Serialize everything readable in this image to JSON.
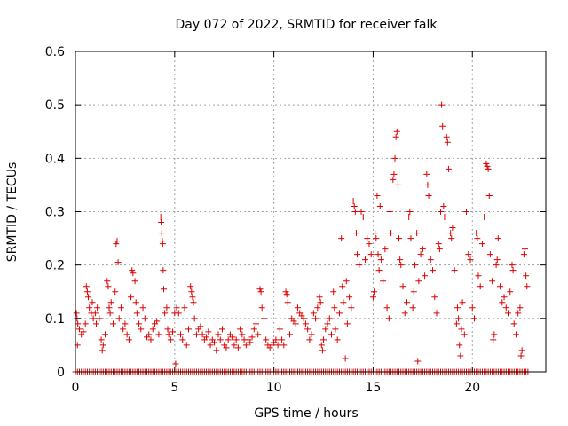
{
  "chart_data": {
    "type": "scatter",
    "title": "Day 072 of 2022, SRMTID for receiver falk",
    "xlabel": "GPS time / hours",
    "ylabel": "SRMTID / TECUs",
    "xlim": [
      0,
      23.7
    ],
    "ylim": [
      0,
      0.6
    ],
    "xticks": [
      0,
      5,
      10,
      15,
      20
    ],
    "yticks": [
      0,
      0.1,
      0.2,
      0.3,
      0.4,
      0.5,
      0.6
    ],
    "grid": true,
    "marker": "plus",
    "color": "#dd0000",
    "series": [
      {
        "name": "SRMTID",
        "points": [
          [
            0.05,
            0.11
          ],
          [
            0.08,
            0.1
          ],
          [
            0.1,
            0.05
          ],
          [
            0.12,
            0.09
          ],
          [
            0.2,
            0.08
          ],
          [
            0.3,
            0.07
          ],
          [
            0.4,
            0.075
          ],
          [
            0.5,
            0.09
          ],
          [
            0.55,
            0.16
          ],
          [
            0.6,
            0.15
          ],
          [
            0.65,
            0.14
          ],
          [
            0.7,
            0.12
          ],
          [
            0.8,
            0.11
          ],
          [
            0.85,
            0.13
          ],
          [
            0.9,
            0.1
          ],
          [
            1.0,
            0.11
          ],
          [
            1.05,
            0.09
          ],
          [
            1.1,
            0.12
          ],
          [
            1.2,
            0.1
          ],
          [
            1.3,
            0.06
          ],
          [
            1.35,
            0.04
          ],
          [
            1.4,
            0.05
          ],
          [
            1.5,
            0.07
          ],
          [
            1.6,
            0.17
          ],
          [
            1.65,
            0.16
          ],
          [
            1.7,
            0.12
          ],
          [
            1.75,
            0.11
          ],
          [
            1.8,
            0.13
          ],
          [
            1.9,
            0.09
          ],
          [
            2.0,
            0.15
          ],
          [
            2.05,
            0.24
          ],
          [
            2.1,
            0.245
          ],
          [
            2.15,
            0.205
          ],
          [
            2.2,
            0.1
          ],
          [
            2.3,
            0.12
          ],
          [
            2.4,
            0.08
          ],
          [
            2.5,
            0.09
          ],
          [
            2.6,
            0.07
          ],
          [
            2.7,
            0.06
          ],
          [
            2.8,
            0.14
          ],
          [
            2.85,
            0.19
          ],
          [
            2.9,
            0.185
          ],
          [
            3.0,
            0.17
          ],
          [
            3.05,
            0.13
          ],
          [
            3.1,
            0.11
          ],
          [
            3.2,
            0.09
          ],
          [
            3.3,
            0.08
          ],
          [
            3.4,
            0.12
          ],
          [
            3.5,
            0.1
          ],
          [
            3.6,
            0.065
          ],
          [
            3.7,
            0.07
          ],
          [
            3.8,
            0.06
          ],
          [
            3.9,
            0.08
          ],
          [
            4.0,
            0.09
          ],
          [
            4.1,
            0.095
          ],
          [
            4.2,
            0.07
          ],
          [
            4.3,
            0.29
          ],
          [
            4.32,
            0.28
          ],
          [
            4.35,
            0.26
          ],
          [
            4.38,
            0.245
          ],
          [
            4.4,
            0.24
          ],
          [
            4.42,
            0.19
          ],
          [
            4.45,
            0.155
          ],
          [
            4.5,
            0.11
          ],
          [
            4.6,
            0.12
          ],
          [
            4.65,
            0.08
          ],
          [
            4.7,
            0.07
          ],
          [
            4.8,
            0.06
          ],
          [
            4.9,
            0.075
          ],
          [
            5.0,
            0.11
          ],
          [
            5.05,
            0.015
          ],
          [
            5.1,
            0.12
          ],
          [
            5.2,
            0.11
          ],
          [
            5.3,
            0.07
          ],
          [
            5.4,
            0.06
          ],
          [
            5.5,
            0.12
          ],
          [
            5.6,
            0.05
          ],
          [
            5.7,
            0.08
          ],
          [
            5.8,
            0.16
          ],
          [
            5.85,
            0.15
          ],
          [
            5.9,
            0.14
          ],
          [
            5.95,
            0.13
          ],
          [
            6.0,
            0.1
          ],
          [
            6.1,
            0.07
          ],
          [
            6.2,
            0.08
          ],
          [
            6.3,
            0.085
          ],
          [
            6.4,
            0.07
          ],
          [
            6.5,
            0.06
          ],
          [
            6.6,
            0.065
          ],
          [
            6.7,
            0.075
          ],
          [
            6.8,
            0.05
          ],
          [
            6.9,
            0.06
          ],
          [
            7.0,
            0.055
          ],
          [
            7.1,
            0.04
          ],
          [
            7.2,
            0.07
          ],
          [
            7.3,
            0.06
          ],
          [
            7.4,
            0.08
          ],
          [
            7.5,
            0.05
          ],
          [
            7.6,
            0.045
          ],
          [
            7.7,
            0.06
          ],
          [
            7.8,
            0.07
          ],
          [
            7.9,
            0.065
          ],
          [
            8.0,
            0.05
          ],
          [
            8.1,
            0.06
          ],
          [
            8.2,
            0.045
          ],
          [
            8.3,
            0.08
          ],
          [
            8.4,
            0.07
          ],
          [
            8.5,
            0.06
          ],
          [
            8.6,
            0.05
          ],
          [
            8.7,
            0.06
          ],
          [
            8.8,
            0.055
          ],
          [
            8.9,
            0.065
          ],
          [
            9.0,
            0.08
          ],
          [
            9.1,
            0.09
          ],
          [
            9.2,
            0.07
          ],
          [
            9.3,
            0.155
          ],
          [
            9.35,
            0.15
          ],
          [
            9.4,
            0.12
          ],
          [
            9.5,
            0.1
          ],
          [
            9.6,
            0.06
          ],
          [
            9.7,
            0.05
          ],
          [
            9.8,
            0.045
          ],
          [
            9.9,
            0.05
          ],
          [
            10.0,
            0.055
          ],
          [
            10.1,
            0.06
          ],
          [
            10.2,
            0.05
          ],
          [
            10.3,
            0.08
          ],
          [
            10.4,
            0.06
          ],
          [
            10.5,
            0.05
          ],
          [
            10.6,
            0.15
          ],
          [
            10.65,
            0.145
          ],
          [
            10.7,
            0.13
          ],
          [
            10.8,
            0.07
          ],
          [
            10.9,
            0.1
          ],
          [
            11.0,
            0.095
          ],
          [
            11.1,
            0.09
          ],
          [
            11.2,
            0.12
          ],
          [
            11.3,
            0.11
          ],
          [
            11.4,
            0.105
          ],
          [
            11.5,
            0.1
          ],
          [
            11.6,
            0.09
          ],
          [
            11.7,
            0.08
          ],
          [
            11.8,
            0.06
          ],
          [
            11.9,
            0.07
          ],
          [
            12.0,
            0.11
          ],
          [
            12.1,
            0.1
          ],
          [
            12.2,
            0.12
          ],
          [
            12.3,
            0.14
          ],
          [
            12.35,
            0.13
          ],
          [
            12.4,
            0.05
          ],
          [
            12.45,
            0.04
          ],
          [
            12.5,
            0.06
          ],
          [
            12.6,
            0.08
          ],
          [
            12.7,
            0.09
          ],
          [
            12.8,
            0.1
          ],
          [
            12.9,
            0.07
          ],
          [
            13.0,
            0.15
          ],
          [
            13.05,
            0.12
          ],
          [
            13.1,
            0.08
          ],
          [
            13.2,
            0.06
          ],
          [
            13.3,
            0.11
          ],
          [
            13.4,
            0.25
          ],
          [
            13.45,
            0.16
          ],
          [
            13.5,
            0.13
          ],
          [
            13.6,
            0.025
          ],
          [
            13.65,
            0.17
          ],
          [
            13.7,
            0.09
          ],
          [
            13.8,
            0.14
          ],
          [
            13.9,
            0.12
          ],
          [
            14.0,
            0.32
          ],
          [
            14.05,
            0.31
          ],
          [
            14.1,
            0.3
          ],
          [
            14.15,
            0.26
          ],
          [
            14.2,
            0.22
          ],
          [
            14.3,
            0.2
          ],
          [
            14.4,
            0.3
          ],
          [
            14.5,
            0.29
          ],
          [
            14.6,
            0.21
          ],
          [
            14.7,
            0.25
          ],
          [
            14.8,
            0.24
          ],
          [
            14.9,
            0.22
          ],
          [
            15.0,
            0.14
          ],
          [
            15.05,
            0.15
          ],
          [
            15.1,
            0.26
          ],
          [
            15.15,
            0.25
          ],
          [
            15.2,
            0.33
          ],
          [
            15.25,
            0.22
          ],
          [
            15.3,
            0.19
          ],
          [
            15.35,
            0.31
          ],
          [
            15.4,
            0.21
          ],
          [
            15.5,
            0.17
          ],
          [
            15.6,
            0.23
          ],
          [
            15.7,
            0.12
          ],
          [
            15.8,
            0.1
          ],
          [
            15.85,
            0.3
          ],
          [
            15.9,
            0.26
          ],
          [
            16.0,
            0.36
          ],
          [
            16.05,
            0.37
          ],
          [
            16.1,
            0.4
          ],
          [
            16.15,
            0.44
          ],
          [
            16.2,
            0.45
          ],
          [
            16.25,
            0.35
          ],
          [
            16.3,
            0.25
          ],
          [
            16.35,
            0.21
          ],
          [
            16.4,
            0.2
          ],
          [
            16.5,
            0.16
          ],
          [
            16.6,
            0.11
          ],
          [
            16.7,
            0.13
          ],
          [
            16.8,
            0.29
          ],
          [
            16.85,
            0.3
          ],
          [
            16.9,
            0.25
          ],
          [
            17.0,
            0.12
          ],
          [
            17.05,
            0.15
          ],
          [
            17.1,
            0.2
          ],
          [
            17.2,
            0.26
          ],
          [
            17.25,
            0.02
          ],
          [
            17.3,
            0.17
          ],
          [
            17.4,
            0.22
          ],
          [
            17.5,
            0.23
          ],
          [
            17.6,
            0.18
          ],
          [
            17.7,
            0.37
          ],
          [
            17.75,
            0.35
          ],
          [
            17.8,
            0.33
          ],
          [
            17.9,
            0.21
          ],
          [
            18.0,
            0.19
          ],
          [
            18.1,
            0.14
          ],
          [
            18.2,
            0.11
          ],
          [
            18.3,
            0.24
          ],
          [
            18.35,
            0.23
          ],
          [
            18.4,
            0.3
          ],
          [
            18.45,
            0.5
          ],
          [
            18.5,
            0.46
          ],
          [
            18.55,
            0.31
          ],
          [
            18.6,
            0.29
          ],
          [
            18.7,
            0.44
          ],
          [
            18.75,
            0.43
          ],
          [
            18.8,
            0.38
          ],
          [
            18.9,
            0.26
          ],
          [
            18.95,
            0.25
          ],
          [
            19.0,
            0.27
          ],
          [
            19.1,
            0.19
          ],
          [
            19.2,
            0.09
          ],
          [
            19.25,
            0.12
          ],
          [
            19.3,
            0.1
          ],
          [
            19.35,
            0.05
          ],
          [
            19.4,
            0.03
          ],
          [
            19.45,
            0.08
          ],
          [
            19.5,
            0.13
          ],
          [
            19.6,
            0.07
          ],
          [
            19.7,
            0.3
          ],
          [
            19.8,
            0.22
          ],
          [
            19.9,
            0.21
          ],
          [
            20.0,
            0.12
          ],
          [
            20.1,
            0.1
          ],
          [
            20.2,
            0.26
          ],
          [
            20.25,
            0.25
          ],
          [
            20.3,
            0.18
          ],
          [
            20.4,
            0.16
          ],
          [
            20.5,
            0.24
          ],
          [
            20.6,
            0.29
          ],
          [
            20.7,
            0.39
          ],
          [
            20.75,
            0.385
          ],
          [
            20.8,
            0.38
          ],
          [
            20.85,
            0.33
          ],
          [
            20.9,
            0.22
          ],
          [
            21.0,
            0.17
          ],
          [
            21.05,
            0.06
          ],
          [
            21.1,
            0.07
          ],
          [
            21.2,
            0.2
          ],
          [
            21.25,
            0.21
          ],
          [
            21.3,
            0.25
          ],
          [
            21.4,
            0.16
          ],
          [
            21.5,
            0.13
          ],
          [
            21.6,
            0.14
          ],
          [
            21.7,
            0.12
          ],
          [
            21.8,
            0.11
          ],
          [
            21.9,
            0.15
          ],
          [
            22.0,
            0.2
          ],
          [
            22.05,
            0.19
          ],
          [
            22.1,
            0.09
          ],
          [
            22.2,
            0.07
          ],
          [
            22.3,
            0.11
          ],
          [
            22.4,
            0.12
          ],
          [
            22.45,
            0.03
          ],
          [
            22.5,
            0.04
          ],
          [
            22.6,
            0.22
          ],
          [
            22.65,
            0.23
          ],
          [
            22.7,
            0.18
          ],
          [
            22.75,
            0.16
          ]
        ],
        "baseline_zero_range": [
          0,
          22.8
        ],
        "baseline_zero_step": 0.1
      }
    ]
  }
}
